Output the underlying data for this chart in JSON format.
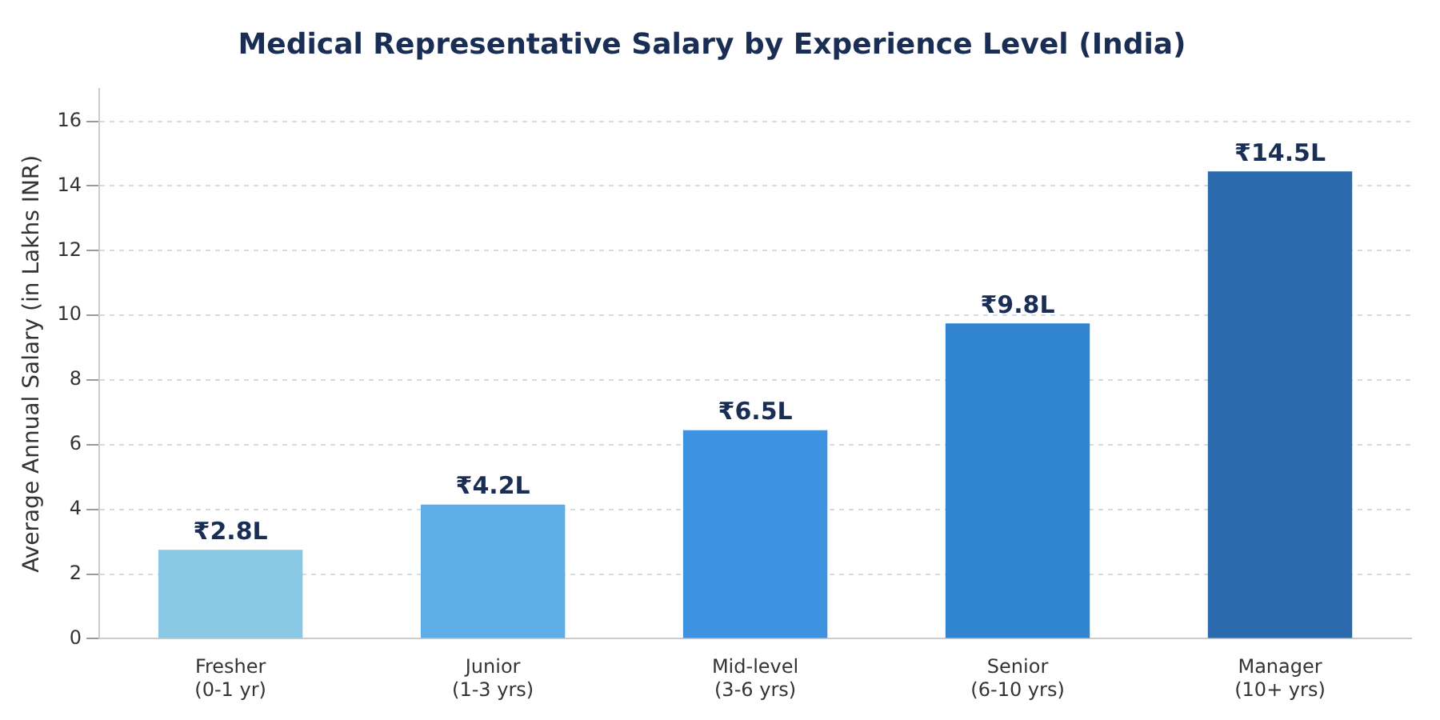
{
  "chart_data": {
    "type": "bar",
    "title": "Medical Representative Salary by Experience Level (India)",
    "ylabel": "Average Annual Salary (in Lakhs INR)",
    "categories": [
      "Fresher\n(0-1 yr)",
      "Junior\n(1-3 yrs)",
      "Mid-level\n(3-6 yrs)",
      "Senior\n(6-10 yrs)",
      "Manager\n(10+ yrs)"
    ],
    "values": [
      2.75,
      4.15,
      6.45,
      9.75,
      14.45
    ],
    "value_labels": [
      "₹2.8L",
      "₹4.2L",
      "₹6.5L",
      "₹9.8L",
      "₹14.5L"
    ],
    "colors": [
      "#89c9e6",
      "#5daee8",
      "#3d93e0",
      "#3084d0",
      "#2b6aad"
    ],
    "ylim": [
      0,
      17
    ],
    "yticks": [
      0,
      2,
      4,
      6,
      8,
      10,
      12,
      14,
      16
    ],
    "grid": "y",
    "legend": false
  }
}
